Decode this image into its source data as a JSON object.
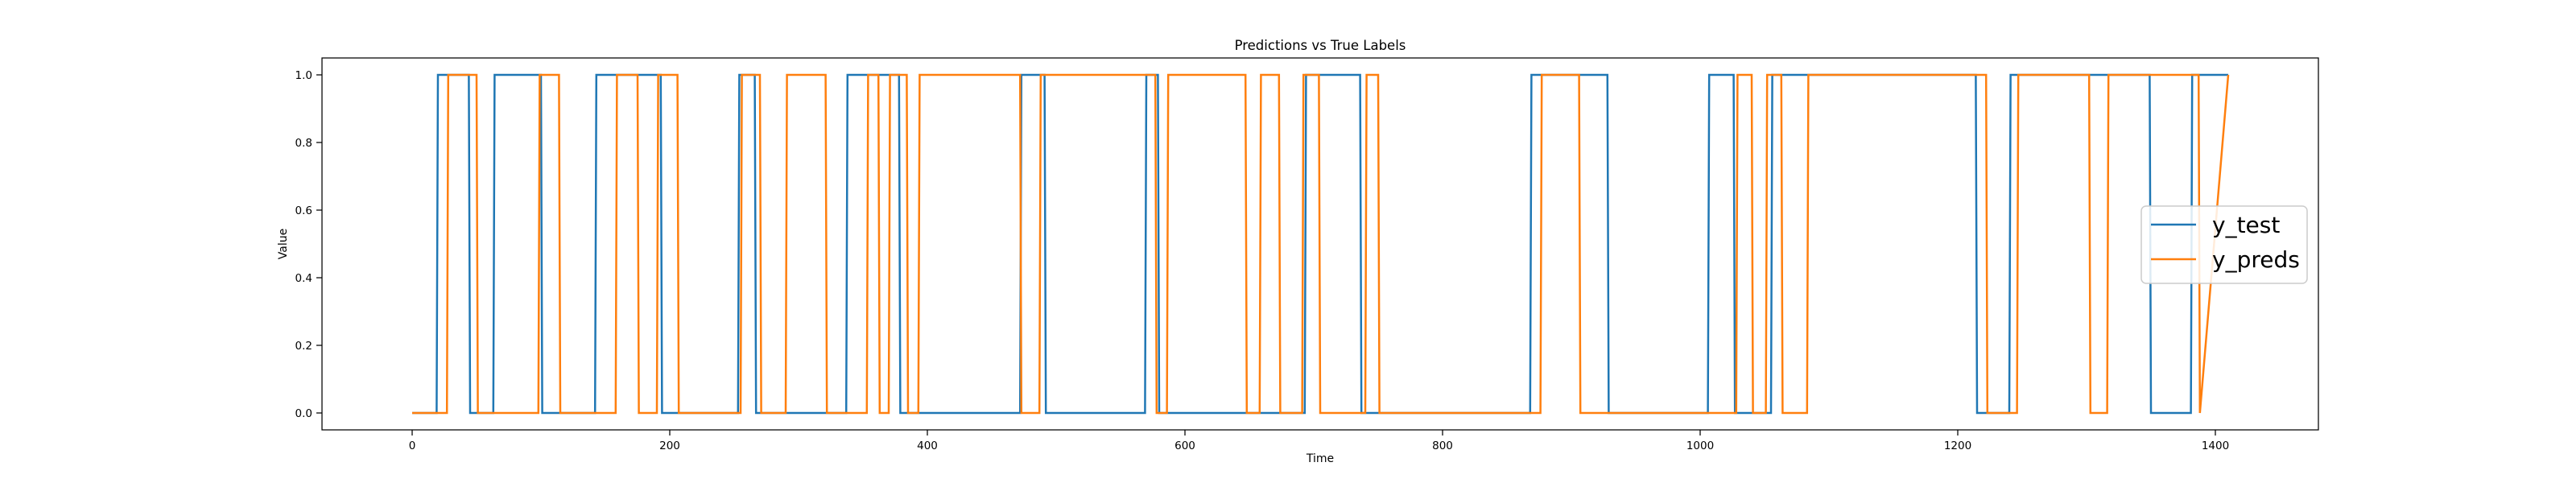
{
  "colors": {
    "y_test": "#1f77b4",
    "y_preds": "#ff7f0e",
    "axes": "#000000",
    "background": "#ffffff"
  },
  "chart_data": {
    "type": "line",
    "title": "Predictions vs True Labels",
    "xlabel": "Time",
    "ylabel": "Value",
    "xlim": [
      -70,
      1480
    ],
    "ylim": [
      -0.05,
      1.05
    ],
    "xticks": [
      0,
      200,
      400,
      600,
      800,
      1000,
      1200,
      1400
    ],
    "yticks": [
      0.0,
      0.2,
      0.4,
      0.6,
      0.8,
      1.0
    ],
    "xtick_labels": [
      "0",
      "200",
      "400",
      "600",
      "800",
      "1000",
      "1200",
      "1400"
    ],
    "ytick_labels": [
      "0.0",
      "0.2",
      "0.4",
      "0.6",
      "0.8",
      "1.0"
    ],
    "grid": false,
    "legend_position": "center-right",
    "series": [
      {
        "name": "y_test",
        "color": "#1f77b4",
        "x": [
          0,
          19,
          20,
          44,
          45,
          63,
          64,
          100,
          101,
          142,
          143,
          193,
          194,
          253,
          254,
          266,
          267,
          337,
          338,
          378,
          379,
          472,
          473,
          491,
          492,
          569,
          570,
          579,
          580,
          693,
          694,
          736,
          737,
          868,
          869,
          928,
          929,
          1006,
          1007,
          1026,
          1027,
          1055,
          1056,
          1214,
          1215,
          1240,
          1241,
          1349,
          1350,
          1381,
          1382,
          1410
        ],
        "y": [
          0,
          0,
          1,
          1,
          0,
          0,
          1,
          1,
          0,
          0,
          1,
          1,
          0,
          0,
          1,
          1,
          0,
          0,
          1,
          1,
          0,
          0,
          1,
          1,
          0,
          0,
          1,
          1,
          0,
          0,
          1,
          1,
          0,
          0,
          1,
          1,
          0,
          0,
          1,
          1,
          0,
          0,
          1,
          1,
          0,
          0,
          1,
          1,
          0,
          0,
          1,
          1
        ]
      },
      {
        "name": "y_preds",
        "color": "#ff7f0e",
        "x": [
          0,
          27,
          28,
          50,
          51,
          98,
          99,
          114,
          115,
          158,
          159,
          175,
          176,
          190,
          191,
          206,
          207,
          255,
          256,
          270,
          271,
          290,
          291,
          321,
          322,
          353,
          354,
          362,
          363,
          370,
          371,
          384,
          385,
          393,
          394,
          472,
          473,
          487,
          488,
          577,
          578,
          586,
          587,
          647,
          648,
          658,
          659,
          673,
          674,
          691,
          692,
          704,
          705,
          740,
          741,
          750,
          751,
          876,
          877,
          906,
          907,
          1028,
          1029,
          1040,
          1041,
          1051,
          1052,
          1063,
          1064,
          1083,
          1084,
          1222,
          1223,
          1246,
          1247,
          1302,
          1303,
          1316,
          1317,
          1387,
          1388,
          1410
        ],
        "y": [
          0,
          0,
          1,
          1,
          0,
          0,
          1,
          1,
          0,
          0,
          1,
          1,
          0,
          0,
          1,
          1,
          0,
          0,
          1,
          1,
          0,
          0,
          1,
          1,
          0,
          0,
          1,
          1,
          0,
          0,
          1,
          1,
          0,
          0,
          1,
          1,
          0,
          0,
          1,
          1,
          0,
          0,
          1,
          1,
          0,
          0,
          1,
          1,
          0,
          0,
          1,
          1,
          0,
          0,
          1,
          1,
          0,
          0,
          1,
          1,
          0,
          0,
          1,
          1,
          0,
          0,
          1,
          1,
          0,
          0,
          1,
          1,
          0,
          0,
          1,
          1,
          0,
          0,
          1,
          1,
          0,
          1
        ]
      }
    ]
  }
}
